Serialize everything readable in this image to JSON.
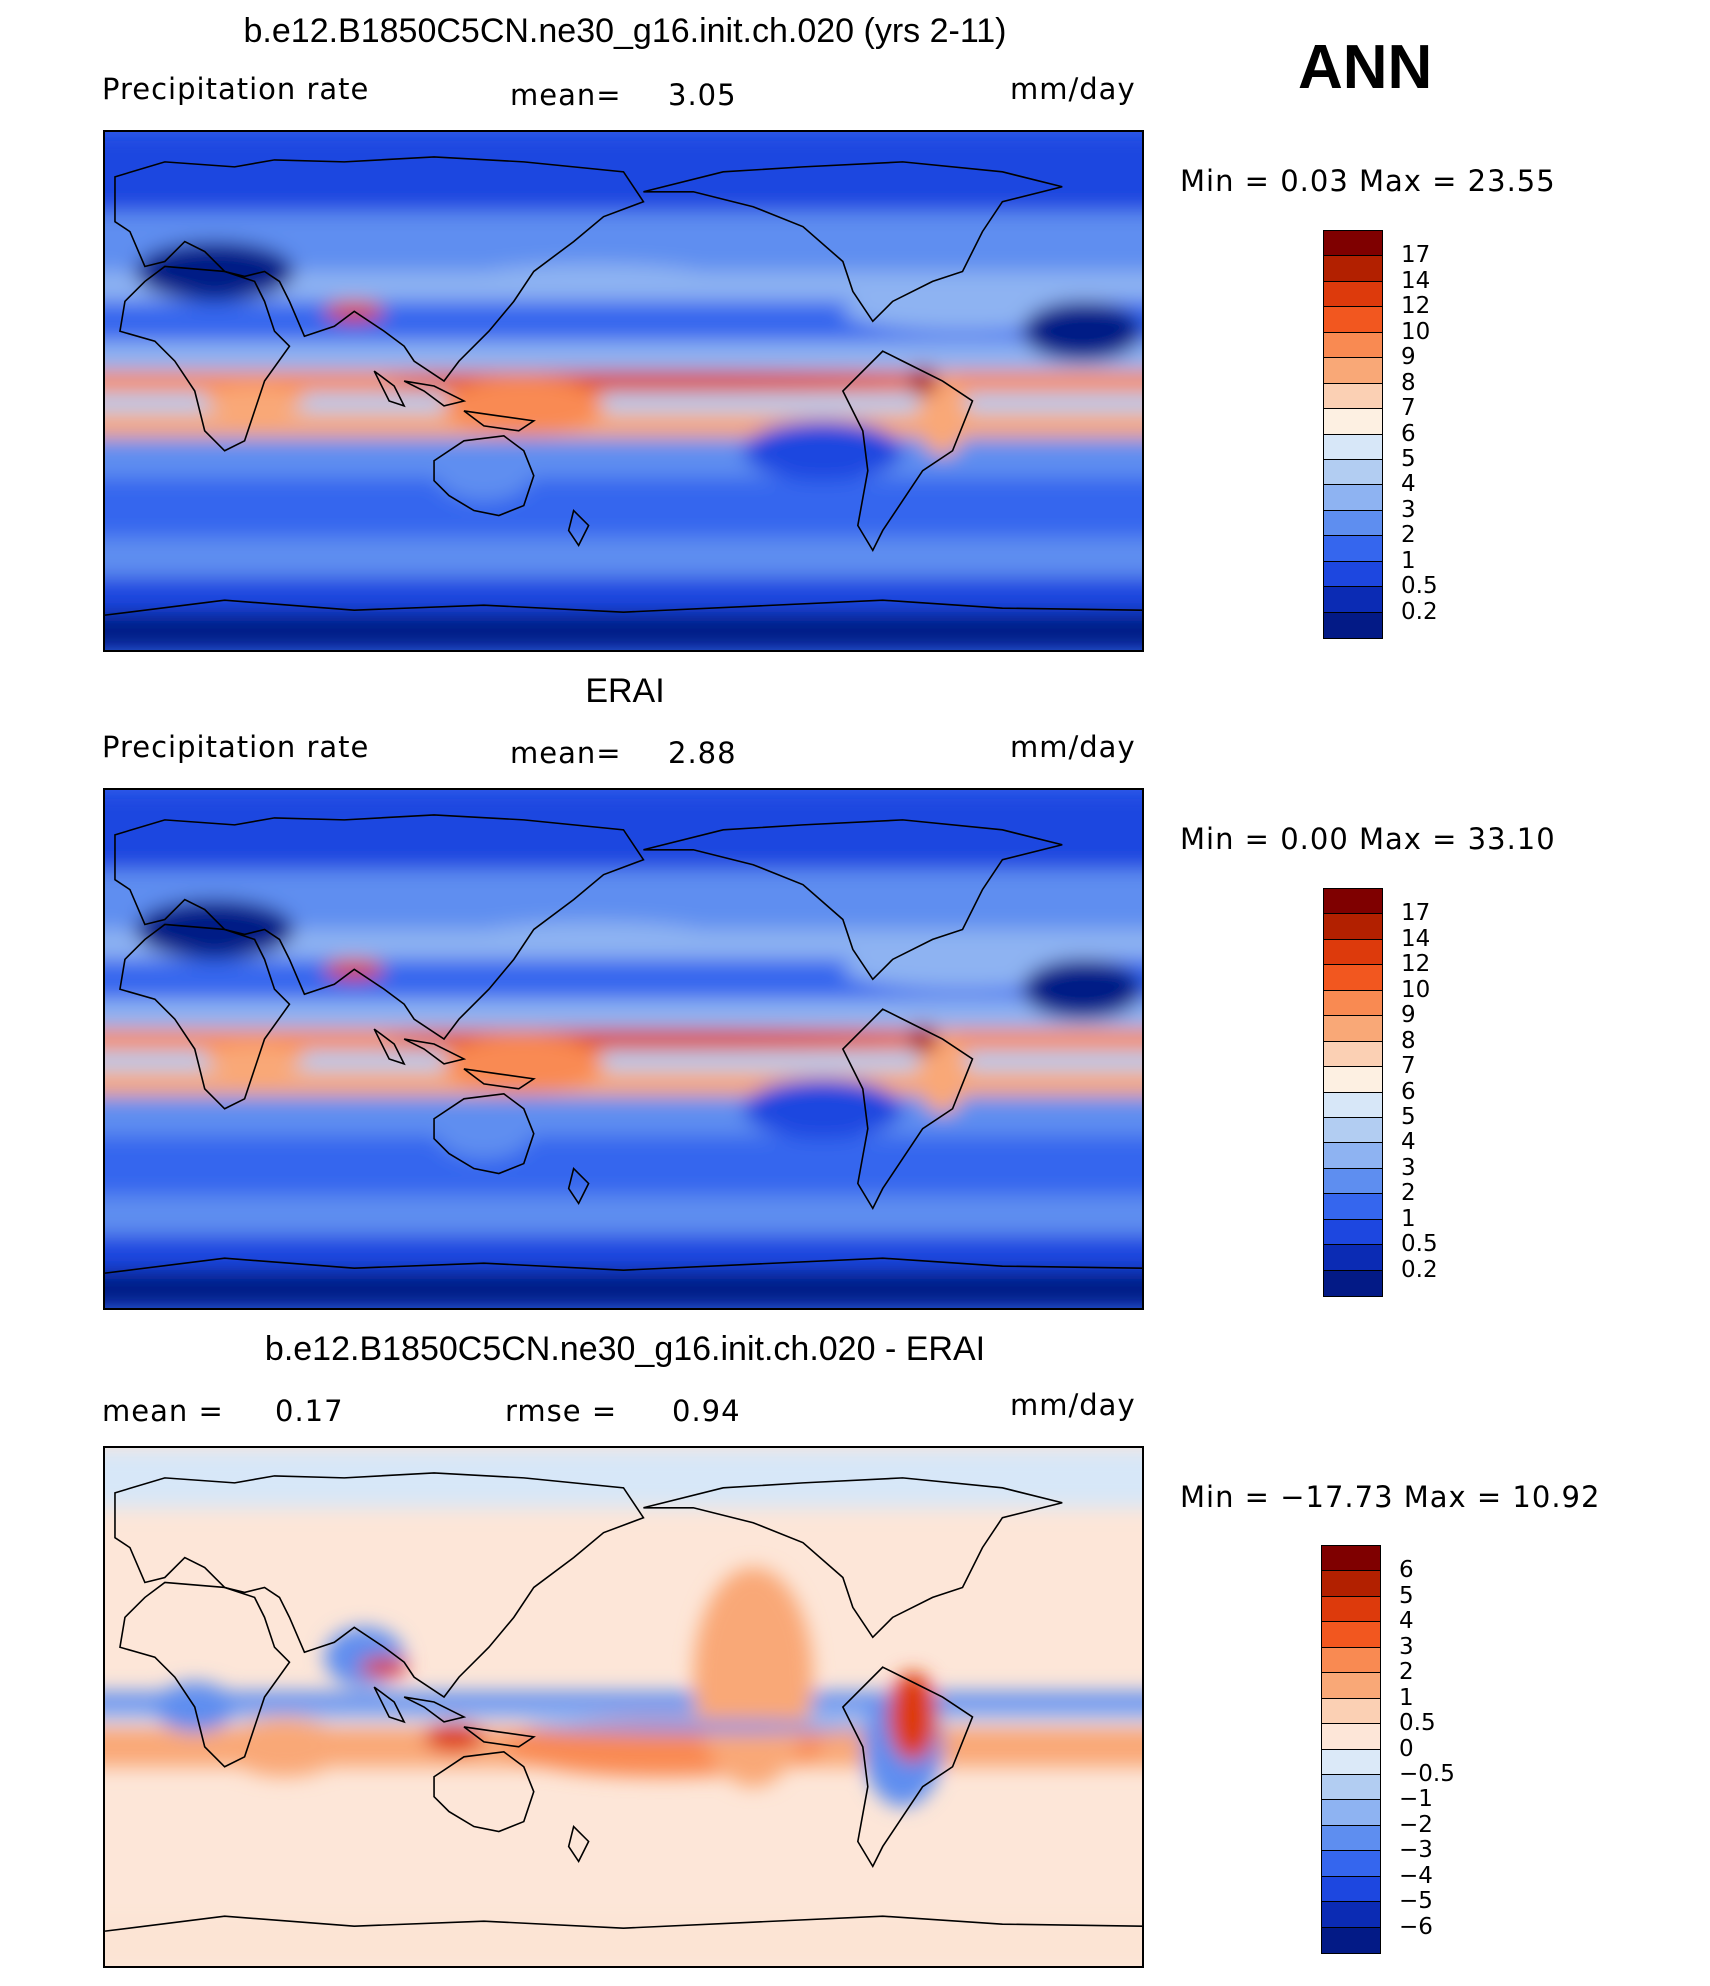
{
  "season": "ANN",
  "panels": [
    {
      "title": "b.e12.B1850C5CN.ne30_g16.init.ch.020 (yrs 2-11)",
      "left": "Precipitation  rate",
      "stat1_label": "mean=",
      "stat1_value": "3.05",
      "units": "mm/day",
      "minmax": "Min  =    0.03  Max  =    23.55",
      "field_kind": "model",
      "colorbar": {
        "colors": [
          "#7f0000",
          "#b22000",
          "#dd3a0c",
          "#f2571f",
          "#f98a52",
          "#f9a877",
          "#fbd0b4",
          "#fdf0e2",
          "#d7e7f8",
          "#b2cdf2",
          "#8eb3f2",
          "#5e8ef0",
          "#3566ee",
          "#1d47e0",
          "#0b2bb4",
          "#031a86"
        ],
        "labels": [
          "17",
          "14",
          "12",
          "10",
          "9",
          "8",
          "7",
          "6",
          "5",
          "4",
          "3",
          "2",
          "1",
          "0.5",
          "0.2"
        ]
      }
    },
    {
      "title": "ERAI",
      "left": "Precipitation  rate",
      "stat1_label": "mean=",
      "stat1_value": "2.88",
      "units": "mm/day",
      "minmax": "Min  =    0.00  Max  =    33.10",
      "field_kind": "obs",
      "colorbar": {
        "colors": [
          "#7f0000",
          "#b22000",
          "#dd3a0c",
          "#f2571f",
          "#f98a52",
          "#f9a877",
          "#fbd0b4",
          "#fdf0e2",
          "#d7e7f8",
          "#b2cdf2",
          "#8eb3f2",
          "#5e8ef0",
          "#3566ee",
          "#1d47e0",
          "#0b2bb4",
          "#031a86"
        ],
        "labels": [
          "17",
          "14",
          "12",
          "10",
          "9",
          "8",
          "7",
          "6",
          "5",
          "4",
          "3",
          "2",
          "1",
          "0.5",
          "0.2"
        ]
      }
    },
    {
      "title": "b.e12.B1850C5CN.ne30_g16.init.ch.020 - ERAI",
      "left_label": "mean  =",
      "left_value": "0.17",
      "stat1_label": "rmse  =",
      "stat1_value": "0.94",
      "units": "mm/day",
      "minmax": "Min  = −17.73  Max  =    10.92",
      "field_kind": "diff",
      "colorbar": {
        "colors": [
          "#7f0000",
          "#b22000",
          "#dd3a0c",
          "#f2571f",
          "#f98a52",
          "#f9a877",
          "#fbd0b4",
          "#fde6d8",
          "#dbe9f8",
          "#b2cdf2",
          "#8eb3f2",
          "#5e8ef0",
          "#3566ee",
          "#1d47e0",
          "#0b2bb4",
          "#031a86"
        ],
        "labels": [
          "6",
          "5",
          "4",
          "3",
          "2",
          "1",
          "0.5",
          "0",
          "−0.5",
          "−1",
          "−2",
          "−3",
          "−4",
          "−5",
          "−6"
        ]
      }
    }
  ]
}
